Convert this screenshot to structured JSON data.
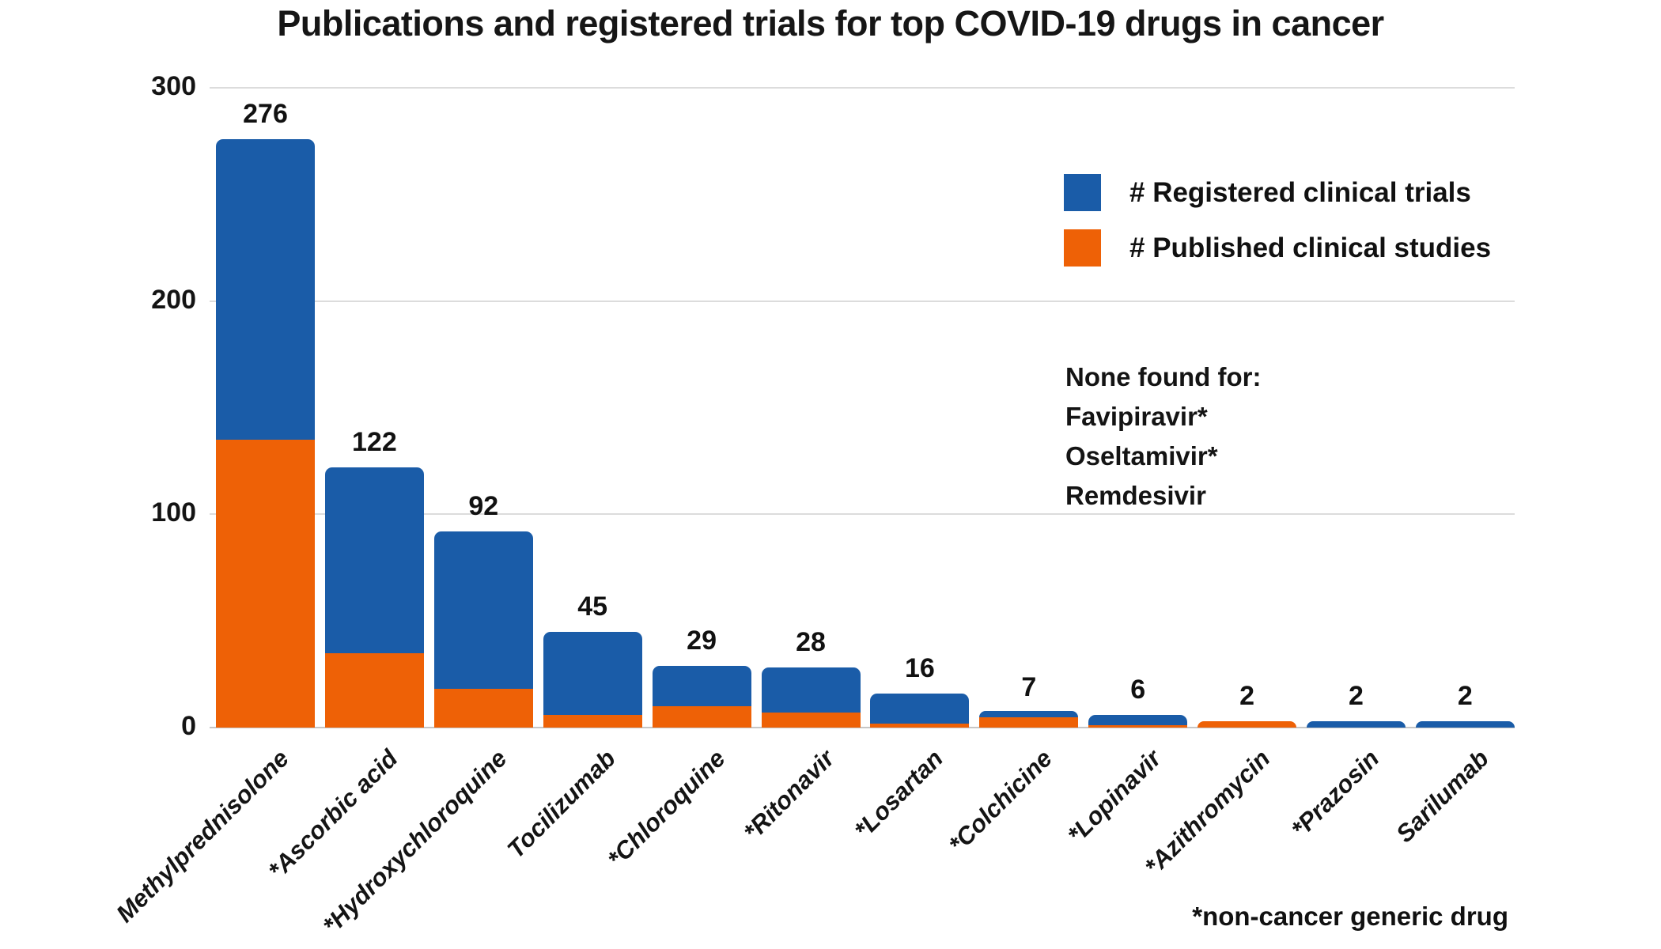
{
  "title": "Publications and registered trials for top COVID-19 drugs in cancer",
  "colors": {
    "registered": "#1a5ca8",
    "published": "#ee6106",
    "gridline": "#dcdcdc",
    "axis": "#c6c6c6"
  },
  "legend": {
    "items": [
      {
        "key": "registered",
        "label": "# Registered clinical trials"
      },
      {
        "key": "published",
        "label": "# Published clinical studies"
      }
    ]
  },
  "none_found": {
    "header": "None found for:",
    "items": [
      "Favipiravir*",
      "Oseltamivir*",
      "Remdesivir"
    ]
  },
  "footnote": "*non-cancer generic drug",
  "chart_data": {
    "type": "bar",
    "stacked": true,
    "categories": [
      "Methylprednisolone",
      "*Ascorbic acid",
      "*Hydroxychloroquine",
      "Tocilizumab",
      "*Chloroquine",
      "*Ritonavir",
      "*Losartan",
      "*Colchicine",
      "*Lopinavir",
      "*Azithromycin",
      "*Prazosin",
      "Sarilumab"
    ],
    "series": [
      {
        "name": "# Published clinical studies",
        "color_key": "published",
        "values": [
          135,
          35,
          18,
          6,
          10,
          7,
          2,
          5,
          1,
          2,
          0,
          0
        ]
      },
      {
        "name": "# Registered clinical trials",
        "color_key": "registered",
        "values": [
          141,
          87,
          74,
          39,
          19,
          21,
          14,
          2,
          5,
          0,
          2,
          2
        ]
      }
    ],
    "totals": [
      276,
      122,
      92,
      45,
      29,
      28,
      16,
      7,
      6,
      2,
      2,
      2
    ],
    "title": "Publications and registered trials for top COVID-19 drugs in cancer",
    "xlabel": "",
    "ylabel": "",
    "ylim": [
      0,
      300
    ],
    "y_ticks": [
      0,
      100,
      200,
      300
    ],
    "grid": true,
    "legend_position": "upper right"
  }
}
